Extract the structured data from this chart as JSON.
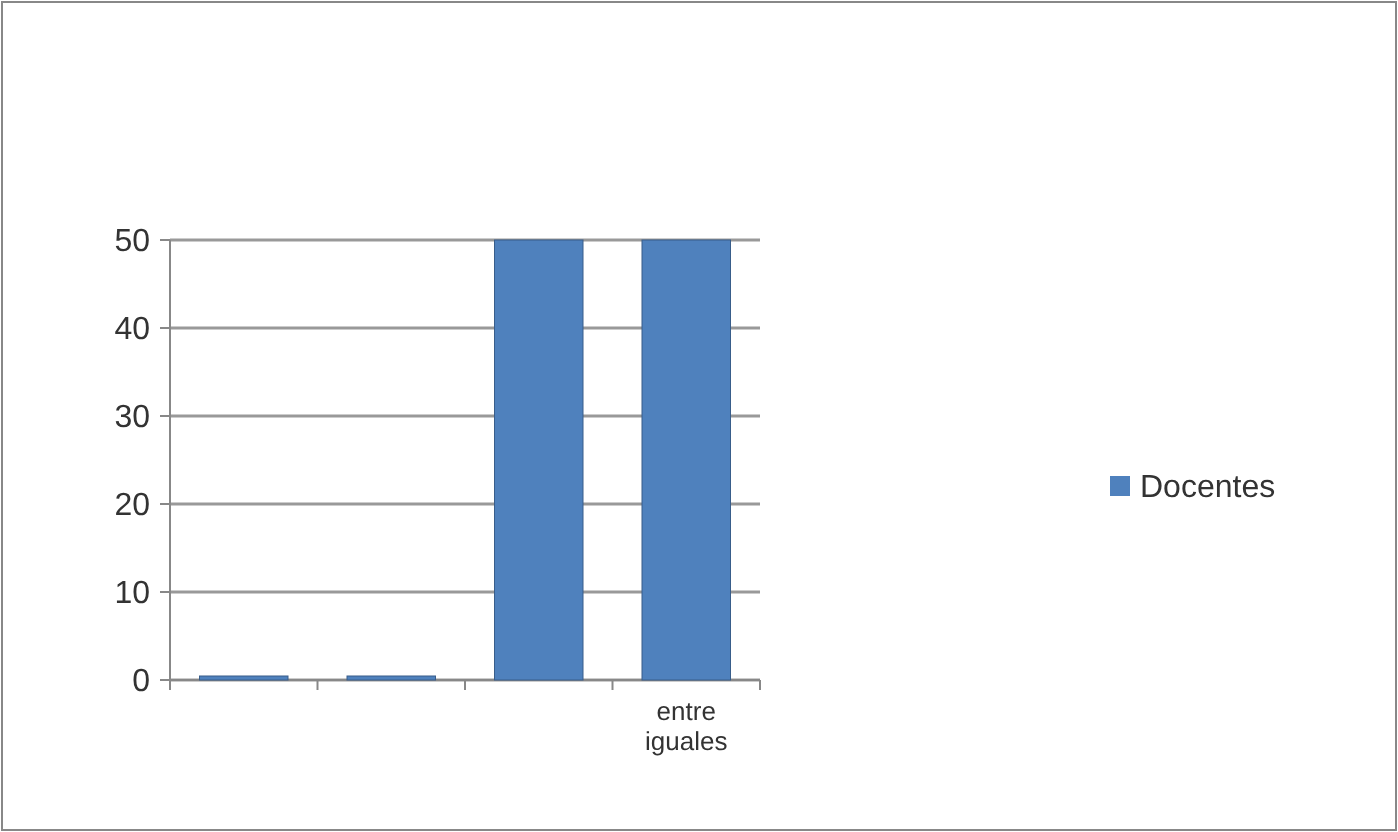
{
  "chart_data": {
    "type": "bar",
    "categories": [
      null,
      null,
      null,
      "entre iguales"
    ],
    "series": [
      {
        "name": "Docentes",
        "color": "#4f81bd",
        "values": [
          0,
          0,
          50,
          50
        ]
      }
    ],
    "ylim": [
      0,
      50
    ],
    "yticks": [
      0,
      10,
      20,
      30,
      40,
      50
    ],
    "grid": "y",
    "legend": "right"
  }
}
